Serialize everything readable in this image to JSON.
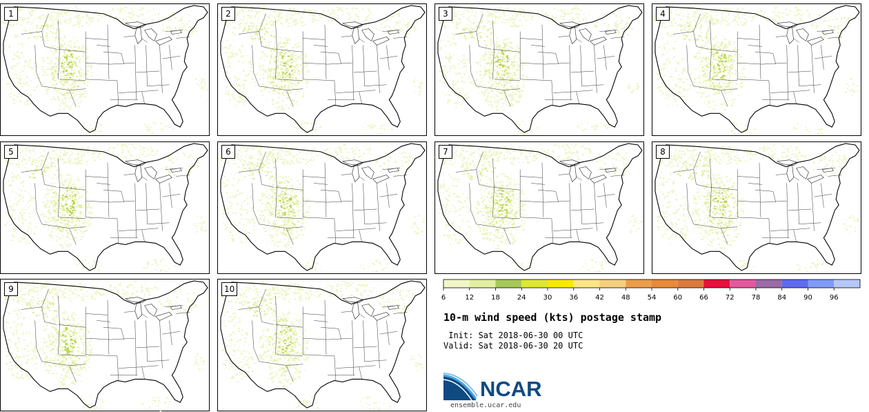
{
  "panels": [
    {
      "label": "1"
    },
    {
      "label": "2"
    },
    {
      "label": "3"
    },
    {
      "label": "4"
    },
    {
      "label": "5"
    },
    {
      "label": "6"
    },
    {
      "label": "7"
    },
    {
      "label": "8"
    },
    {
      "label": "9"
    },
    {
      "label": "10"
    }
  ],
  "colorbar": {
    "ticks": [
      "6",
      "12",
      "18",
      "24",
      "30",
      "36",
      "42",
      "48",
      "54",
      "60",
      "66",
      "72",
      "78",
      "84",
      "90",
      "96"
    ],
    "colors": [
      "#f0f6c8",
      "#e2efa0",
      "#a7c95a",
      "#dde833",
      "#f6ea00",
      "#fbe584",
      "#f5cf7e",
      "#ec9d4c",
      "#e8893c",
      "#dc7a3d",
      "#e8103c",
      "#e2599c",
      "#9a6ba6",
      "#5e6bef",
      "#7f9bf8",
      "#b5c8f8"
    ]
  },
  "title": "10-m wind speed (kts) postage stamp",
  "init_line": " Init: Sat 2018-06-30 00 UTC",
  "valid_line": "Valid: Sat 2018-06-30 20 UTC",
  "logo": {
    "name": "NCAR",
    "url": "ensemble.ucar.edu"
  },
  "map_colors": {
    "light": "#eef5c6",
    "mid": "#dfee9a",
    "strong": "#b7d44a"
  }
}
